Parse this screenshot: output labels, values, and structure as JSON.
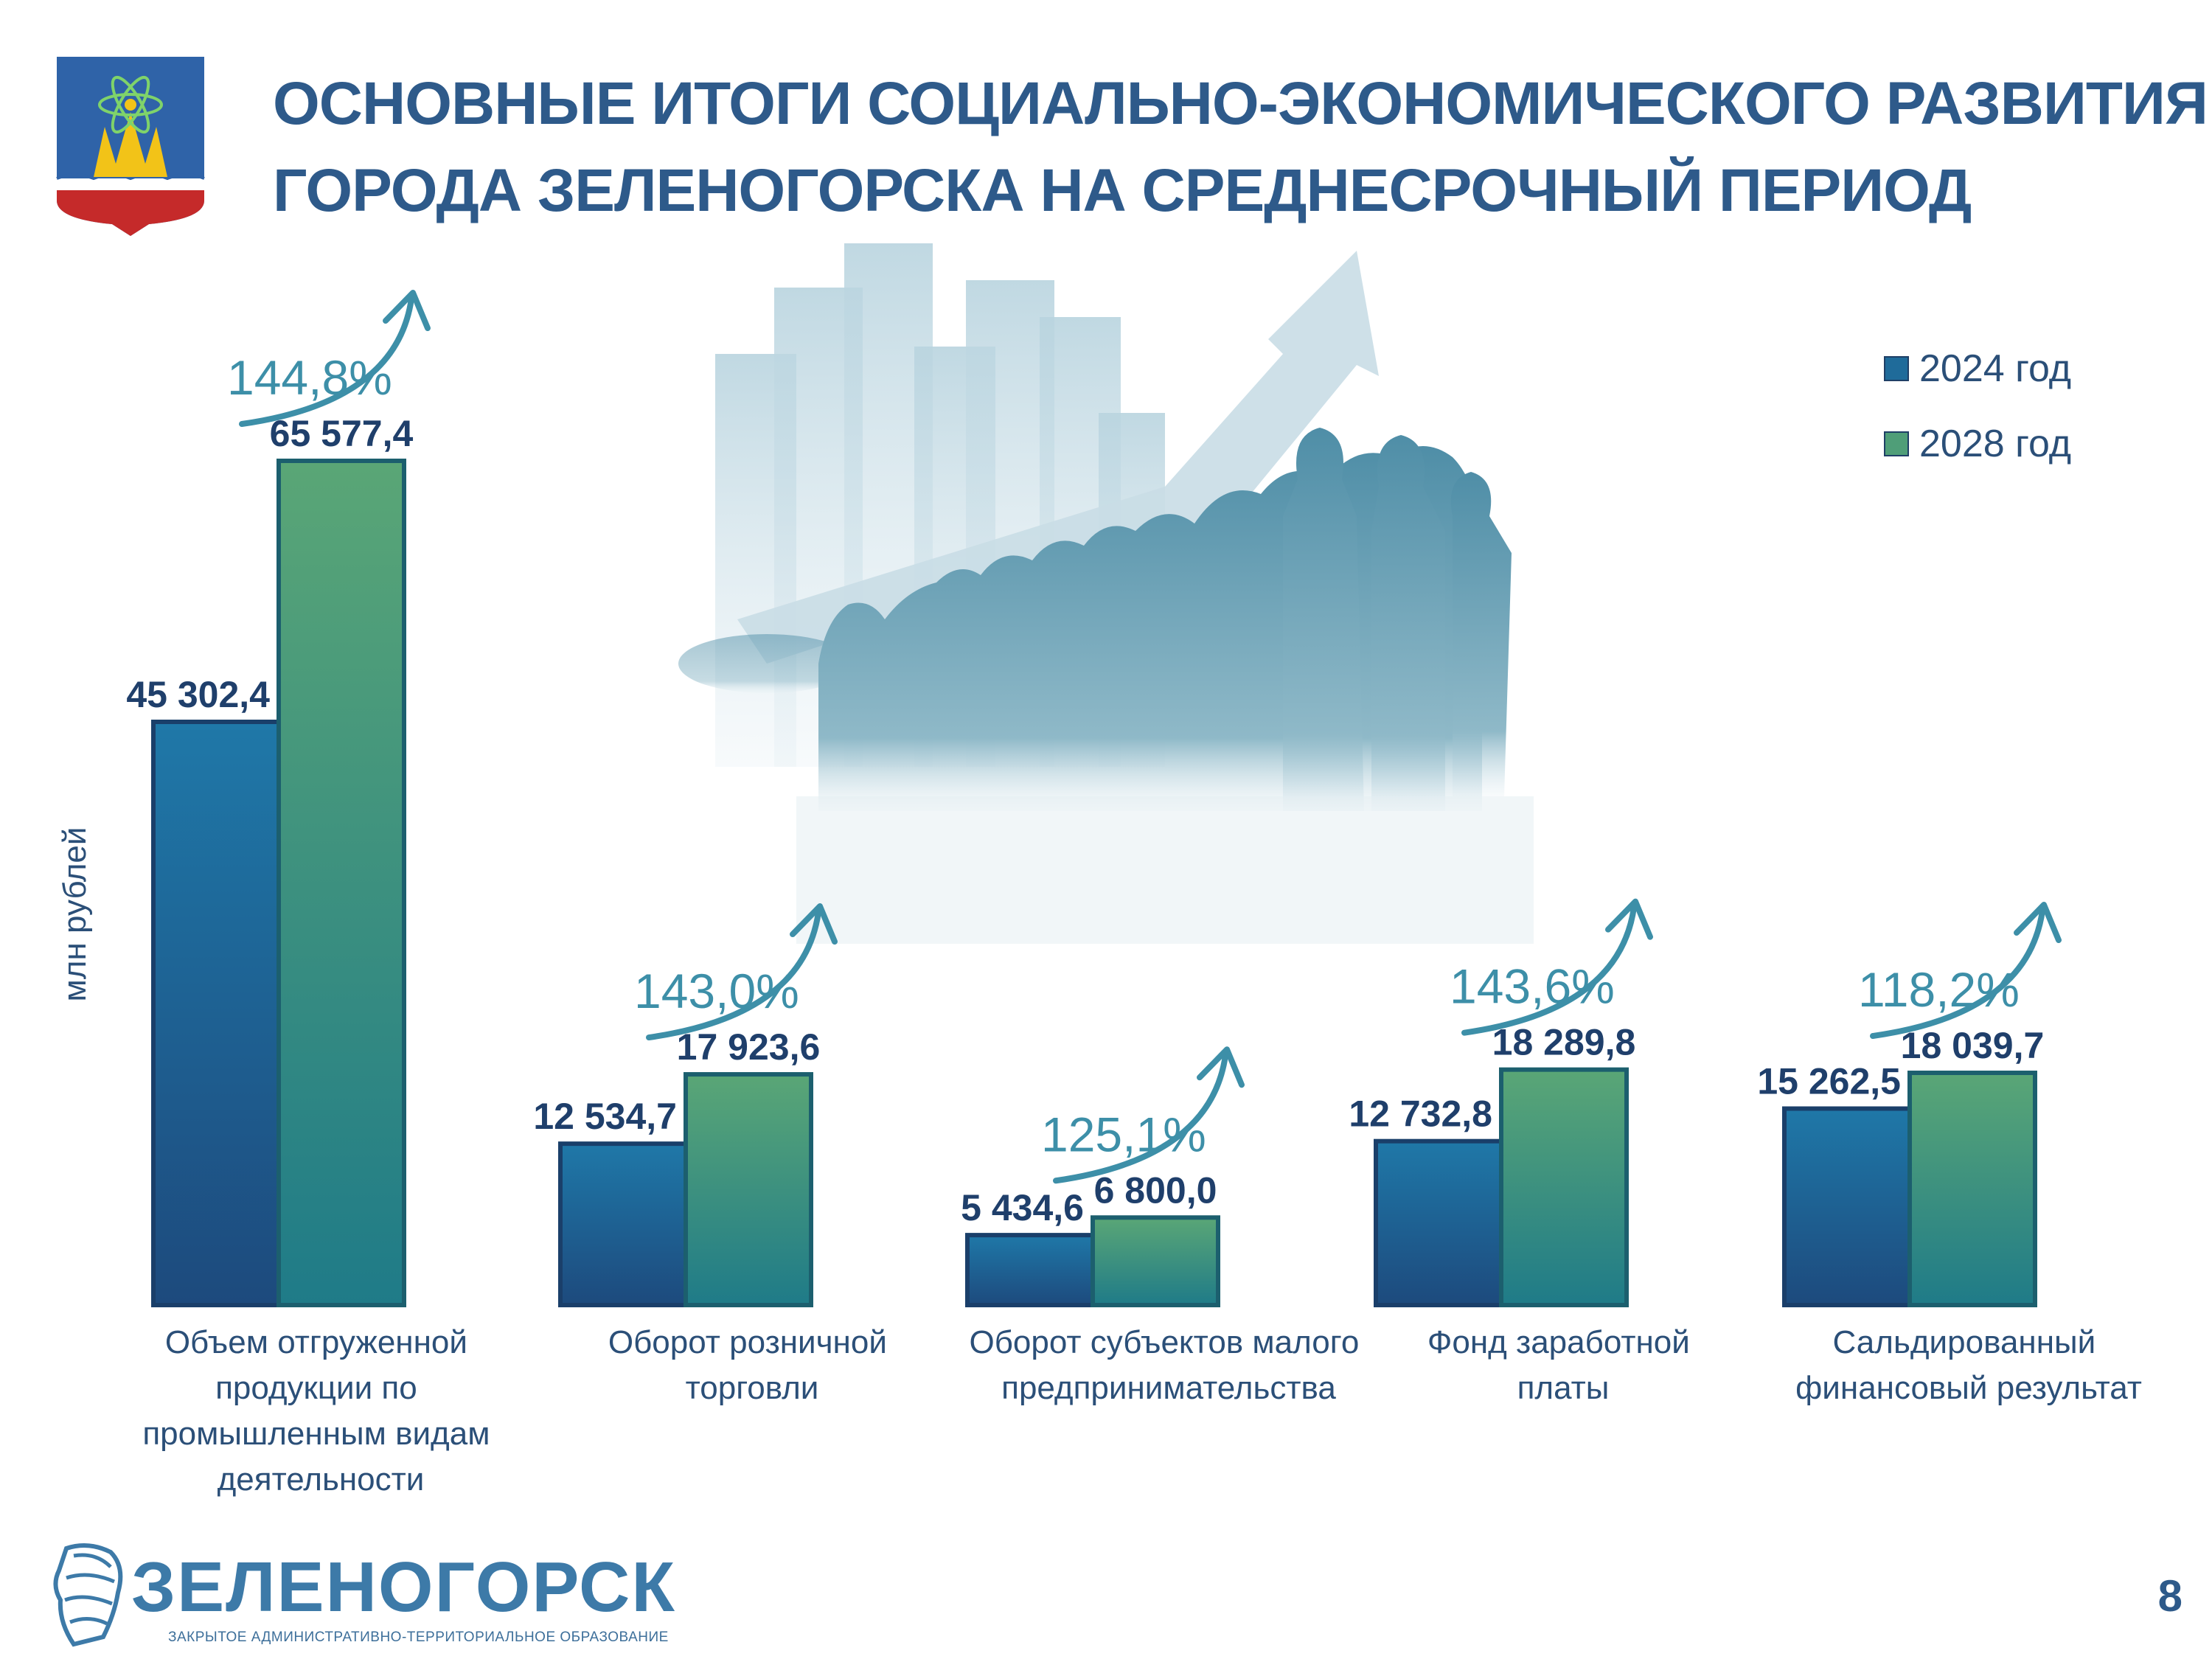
{
  "header": {
    "title_line1": "ОСНОВНЫЕ ИТОГИ СОЦИАЛЬНО-ЭКОНОМИЧЕСКОГО РАЗВИТИЯ",
    "title_line2": "ГОРОДА ЗЕЛЕНОГОРСКА НА СРЕДНЕСРОЧНЫЙ ПЕРИОД"
  },
  "footer": {
    "logo_name": "ЗЕЛЕНОГОРСК",
    "logo_subtitle": "ЗАКРЫТОЕ АДМИНИСТРАТИВНО-ТЕРРИТОРИАЛЬНОЕ ОБРАЗОВАНИЕ",
    "page_number": "8"
  },
  "colors": {
    "title": "#2e5a8a",
    "series_2024": "#1f6b9a",
    "series_2028": "#4f9e78",
    "growth_label": "#3d8fa8"
  },
  "chart_data": {
    "type": "bar",
    "ylabel": "млн рублей",
    "legend_position": "top-right",
    "grid": false,
    "ylim": [
      0,
      65577.4
    ],
    "categories": [
      "Объем отгруженной продукции по промышленным видам деятельности",
      "Оборот розничной торговли",
      "Оборот субъектов малого предпринимательства",
      "Фонд заработной платы",
      "Сальдированный финансовый результат"
    ],
    "series": [
      {
        "name": "2024 год",
        "values": [
          45302.4,
          12534.7,
          5434.6,
          12732.8,
          15262.5
        ],
        "labels": [
          "45 302,4",
          "12 534,7",
          "5 434,6",
          "12 732,8",
          "15 262,5"
        ]
      },
      {
        "name": "2028 год",
        "values": [
          65577.4,
          17923.6,
          6800.0,
          18289.8,
          18039.7
        ],
        "labels": [
          "65 577,4",
          "17 923,6",
          "6 800,0",
          "18 289,8",
          "18 039,7"
        ]
      }
    ],
    "growth_labels": [
      "144,8%",
      "143,0%",
      "125,1%",
      "143,6%",
      "118,2%"
    ]
  }
}
